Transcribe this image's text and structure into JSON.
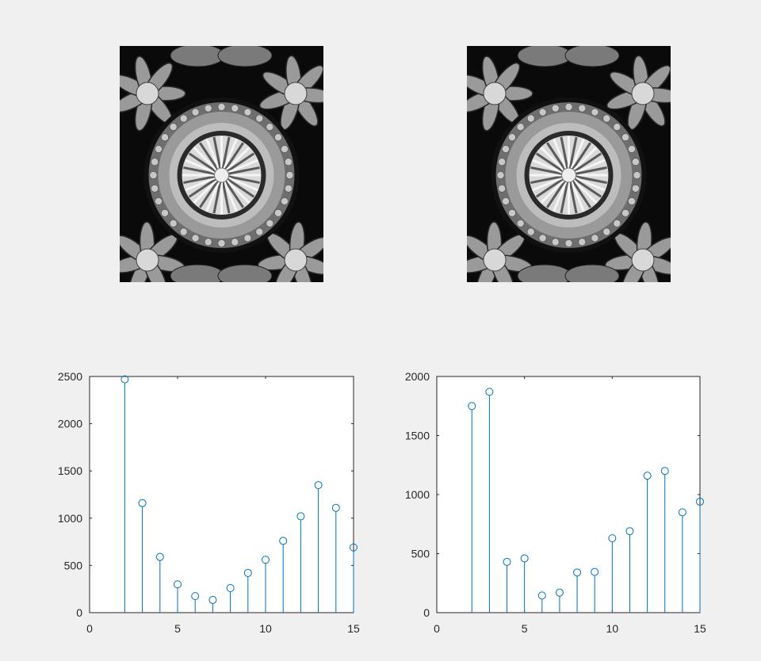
{
  "figure": {
    "background": "#f0f0f0",
    "images": [
      {
        "name": "original-image",
        "content": "grayscale ornamental carving with central rosette"
      },
      {
        "name": "processed-image",
        "content": "grayscale ornamental carving with central rosette"
      }
    ]
  },
  "chart_data": [
    {
      "type": "stem",
      "title": "",
      "xlabel": "",
      "ylabel": "",
      "xlim": [
        0,
        15
      ],
      "ylim": [
        0,
        2500
      ],
      "xticks": [
        "0",
        "5",
        "10",
        "15"
      ],
      "yticks": [
        "0",
        "500",
        "1000",
        "1500",
        "2000",
        "2500"
      ],
      "x": [
        2,
        3,
        4,
        5,
        6,
        7,
        8,
        9,
        10,
        11,
        12,
        13,
        14,
        15
      ],
      "values": [
        2470,
        1160,
        590,
        300,
        175,
        135,
        260,
        420,
        560,
        760,
        1020,
        1350,
        1110,
        690
      ],
      "color": "#0072bd",
      "grid": false
    },
    {
      "type": "stem",
      "title": "",
      "xlabel": "",
      "ylabel": "",
      "xlim": [
        0,
        15
      ],
      "ylim": [
        0,
        2000
      ],
      "xticks": [
        "0",
        "5",
        "10",
        "15"
      ],
      "yticks": [
        "0",
        "500",
        "1000",
        "1500",
        "2000"
      ],
      "x": [
        2,
        3,
        4,
        5,
        6,
        7,
        8,
        9,
        10,
        11,
        12,
        13,
        14,
        15
      ],
      "values": [
        1750,
        1870,
        430,
        460,
        145,
        170,
        340,
        345,
        630,
        690,
        1160,
        1200,
        850,
        940
      ],
      "color": "#0072bd",
      "grid": false
    }
  ]
}
